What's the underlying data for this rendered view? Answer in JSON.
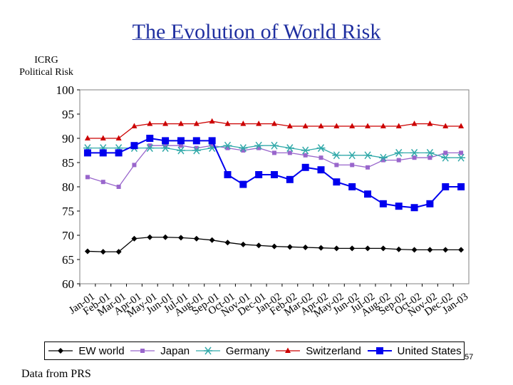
{
  "title": "The Evolution of World Risk",
  "source_note": "Data from PRS",
  "page_number": "57",
  "chart_data": {
    "type": "line",
    "ylabel_lines": [
      "ICRG",
      "Political Risk"
    ],
    "xlabel": "",
    "ylim": [
      60,
      100
    ],
    "yticks": [
      60,
      65,
      70,
      75,
      80,
      85,
      90,
      95,
      100
    ],
    "categories": [
      "Jan-01",
      "Feb-01",
      "Mar-01",
      "Apr-01",
      "May-01",
      "Jun-01",
      "Jul-01",
      "Aug-01",
      "Sep-01",
      "Oct-01",
      "Nov-01",
      "Dec-01",
      "Jan-02",
      "Feb-02",
      "Mar-02",
      "Apr-02",
      "May-02",
      "Jun-02",
      "Jul-02",
      "Aug-02",
      "Sep-02",
      "Oct-02",
      "Nov-02",
      "Dec-02",
      "Jan-03"
    ],
    "grid": false,
    "legend_position": "bottom",
    "series": [
      {
        "name": "EW world",
        "color": "#000000",
        "marker": "diamond",
        "values": [
          66.7,
          66.6,
          66.6,
          69.3,
          69.6,
          69.6,
          69.5,
          69.3,
          69.0,
          68.5,
          68.1,
          67.9,
          67.7,
          67.6,
          67.5,
          67.4,
          67.3,
          67.3,
          67.3,
          67.3,
          67.1,
          67.0,
          67.0,
          67.0,
          67.0
        ]
      },
      {
        "name": "Japan",
        "color": "#9966cc",
        "marker": "square",
        "values": [
          82.0,
          81.0,
          80.0,
          84.5,
          88.5,
          88.5,
          88.5,
          88.0,
          88.5,
          88.0,
          87.5,
          88.0,
          87.0,
          87.0,
          86.5,
          86.0,
          84.5,
          84.5,
          84.0,
          85.5,
          85.5,
          86.0,
          86.0,
          87.0,
          87.0
        ]
      },
      {
        "name": "Germany",
        "color": "#33aaaa",
        "marker": "asterisk",
        "values": [
          88.0,
          88.0,
          88.0,
          88.0,
          88.0,
          88.0,
          87.5,
          87.5,
          88.0,
          88.5,
          88.0,
          88.5,
          88.5,
          88.0,
          87.5,
          88.0,
          86.5,
          86.5,
          86.5,
          86.0,
          87.0,
          87.0,
          87.0,
          86.0,
          86.0
        ]
      },
      {
        "name": "Switzerland",
        "color": "#cc0000",
        "marker": "triangle",
        "values": [
          90.0,
          90.0,
          90.0,
          92.5,
          93.0,
          93.0,
          93.0,
          93.0,
          93.5,
          93.0,
          93.0,
          93.0,
          93.0,
          92.5,
          92.5,
          92.5,
          92.5,
          92.5,
          92.5,
          92.5,
          92.5,
          93.0,
          93.0,
          92.5,
          92.5
        ]
      },
      {
        "name": "United States",
        "color": "#0000ee",
        "marker": "bigsquare",
        "values": [
          87.0,
          87.0,
          87.0,
          88.5,
          90.0,
          89.5,
          89.5,
          89.5,
          89.5,
          82.5,
          80.5,
          82.5,
          82.5,
          81.5,
          84.0,
          83.5,
          81.0,
          80.0,
          78.5,
          76.5,
          76.0,
          75.7,
          76.5,
          80.0,
          80.0
        ]
      }
    ]
  }
}
